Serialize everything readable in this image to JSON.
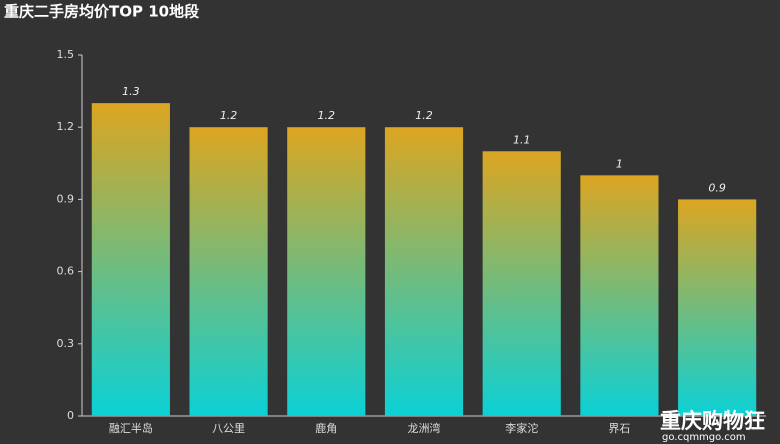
{
  "chart_data": {
    "type": "bar",
    "title": "重庆二手房均价TOP 10地段",
    "categories": [
      "融汇半岛",
      "八公里",
      "鹿角",
      "龙洲湾",
      "李家沱",
      "界石",
      null
    ],
    "values": [
      1.3,
      1.2,
      1.2,
      1.2,
      1.1,
      1,
      0.9
    ],
    "gradient": [
      "#dca521",
      "#0bd1d6"
    ],
    "ylim": [
      0,
      1.5
    ],
    "yticks": [
      0,
      0.3,
      0.6,
      0.9,
      1.2,
      1.5
    ],
    "grid": false,
    "watermark": {
      "text": "重庆购物狂",
      "url": "go.cqmmgo.com"
    }
  }
}
